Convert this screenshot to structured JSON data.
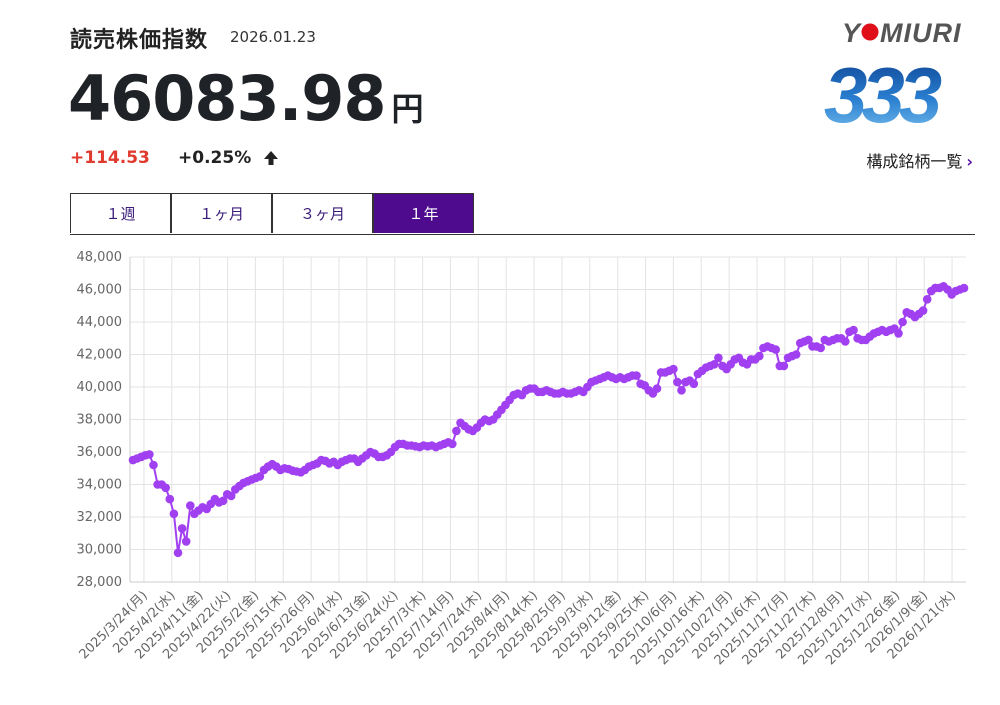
{
  "header": {
    "title": "読売株価指数",
    "date": "2026.01.23",
    "price": "46083.98",
    "unit": "円",
    "change": "+114.53",
    "change_pct": "+0.25%",
    "logo_text": "YOMIURI",
    "logo_number": "333",
    "constituents_link": "構成銘柄一覧"
  },
  "tabs": [
    {
      "label": "１週",
      "active": false
    },
    {
      "label": "１ヶ月",
      "active": false
    },
    {
      "label": "３ヶ月",
      "active": false
    },
    {
      "label": "１年",
      "active": true
    }
  ],
  "colors": {
    "series": "#a040f0",
    "active_tab": "#4e0b8e",
    "change_up": "#e03a2f"
  },
  "chart_data": {
    "type": "line",
    "ylim": [
      28000,
      48000
    ],
    "yticks": [
      "28,000",
      "30,000",
      "32,000",
      "34,000",
      "36,000",
      "38,000",
      "40,000",
      "42,000",
      "44,000",
      "46,000",
      "48,000"
    ],
    "xtick_labels": [
      "2025/3/24(月)",
      "2025/4/2(水)",
      "2025/4/11(金)",
      "2025/4/22(火)",
      "2025/5/2(金)",
      "2025/5/15(木)",
      "2025/5/26(月)",
      "2025/6/4(水)",
      "2025/6/13(金)",
      "2025/6/24(火)",
      "2025/7/3(木)",
      "2025/7/14(月)",
      "2025/7/24(木)",
      "2025/8/4(月)",
      "2025/8/14(木)",
      "2025/8/25(月)",
      "2025/9/3(水)",
      "2025/9/12(金)",
      "2025/9/25(木)",
      "2025/10/6(月)",
      "2025/10/16(木)",
      "2025/10/27(月)",
      "2025/11/6(木)",
      "2025/11/17(月)",
      "2025/11/27(木)",
      "2025/12/8(月)",
      "2025/12/17(水)",
      "2025/12/26(金)",
      "2026/1/9(金)",
      "2026/1/21(水)"
    ],
    "series": [
      {
        "values": [
          35500,
          35600,
          35700,
          35800,
          35850,
          35200,
          34000,
          34000,
          33800,
          33100,
          32200,
          29800,
          31300,
          30500,
          32700,
          32200,
          32400,
          32600,
          32500,
          32800,
          33100,
          32900,
          33000,
          33400,
          33300,
          33700,
          33900,
          34100,
          34200,
          34300,
          34400,
          34500,
          34900,
          35100,
          35250,
          35100,
          34900,
          35000,
          34950,
          34850,
          34800,
          34750,
          34900,
          35100,
          35200,
          35300,
          35500,
          35450,
          35300,
          35400,
          35200,
          35400,
          35500,
          35600,
          35600,
          35400,
          35600,
          35800,
          36000,
          35900,
          35700,
          35700,
          35800,
          36000,
          36300,
          36500,
          36500,
          36400,
          36400,
          36350,
          36300,
          36400,
          36350,
          36400,
          36300,
          36400,
          36500,
          36600,
          36500,
          37300,
          37800,
          37600,
          37400,
          37300,
          37500,
          37800,
          38000,
          37900,
          38000,
          38300,
          38600,
          38900,
          39200,
          39500,
          39600,
          39500,
          39800,
          39900,
          39900,
          39700,
          39700,
          39800,
          39700,
          39600,
          39600,
          39700,
          39600,
          39600,
          39700,
          39800,
          39700,
          40000,
          40300,
          40400,
          40500,
          40600,
          40700,
          40600,
          40500,
          40600,
          40500,
          40600,
          40700,
          40700,
          40200,
          40100,
          39800,
          39600,
          39900,
          40900,
          40900,
          41000,
          41100,
          40300,
          39800,
          40300,
          40400,
          40200,
          40800,
          41000,
          41200,
          41300,
          41400,
          41800,
          41300,
          41100,
          41400,
          41700,
          41800,
          41500,
          41400,
          41700,
          41700,
          41900,
          42400,
          42500,
          42400,
          42300,
          41300,
          41300,
          41800,
          41900,
          42000,
          42700,
          42800,
          42900,
          42500,
          42500,
          42400,
          42900,
          42800,
          42900,
          43000,
          43000,
          42800,
          43400,
          43500,
          43000,
          42900,
          42900,
          43100,
          43300,
          43400,
          43500,
          43400,
          43500,
          43600,
          43300,
          44000,
          44600,
          44500,
          44300,
          44500,
          44700,
          45400,
          45900,
          46100,
          46100,
          46200,
          46000,
          45700,
          45900,
          46000,
          46083.98
        ]
      }
    ]
  }
}
